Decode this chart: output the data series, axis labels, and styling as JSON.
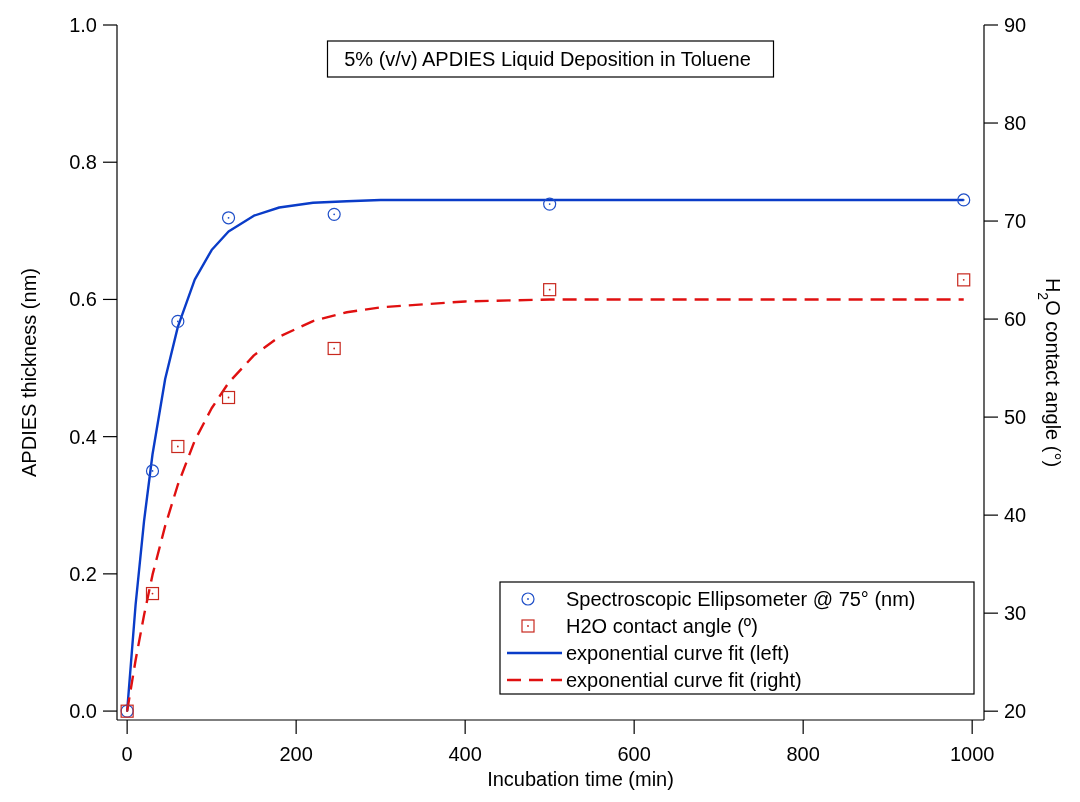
{
  "chart_data": {
    "type": "line",
    "title": "5% (v/v) APDIES Liquid Deposition in Toluene",
    "xlabel": "Incubation time (min)",
    "ylabel": "APDIES thickness (nm)",
    "y2label": "H$_{2}$O contact angle (°)",
    "xlim": [
      -12,
      1014
    ],
    "xticks": [
      0,
      200,
      400,
      600,
      800,
      1000
    ],
    "ylim": [
      -0.013,
      1.0
    ],
    "yticks": [
      {
        "value": 0,
        "label": "0.0"
      },
      {
        "value": 0.2,
        "label": "0.2"
      },
      {
        "value": 0.4,
        "label": "0.4"
      },
      {
        "value": 0.6,
        "label": "0.6"
      },
      {
        "value": 0.8,
        "label": "0.8"
      },
      {
        "value": 1,
        "label": "1.0"
      }
    ],
    "y2lim": [
      19.1,
      90
    ],
    "y2ticks": [
      20,
      30,
      40,
      50,
      60,
      70,
      80,
      90
    ],
    "grid": false,
    "legend": "bottom right",
    "series": [
      {
        "name": "Spectroscopic Ellipsometer @ 75° (nm)",
        "type": "scatter",
        "marker": "circle",
        "color": "#1f4fc8",
        "x": [
          0,
          30,
          60,
          120,
          245,
          500,
          990
        ],
        "values": [
          0,
          0.35,
          0.568,
          0.719,
          0.724,
          0.739,
          0.745
        ]
      },
      {
        "name": "H2O contact angle (º)",
        "type": "scatter",
        "marker": "square",
        "axis": "y2",
        "color": "#c8281e",
        "x": [
          0,
          30,
          60,
          120,
          245,
          500,
          990
        ],
        "values": [
          20,
          32,
          47,
          52,
          57,
          63,
          64
        ]
      },
      {
        "name": "exponential curve fit (left)",
        "line_style": "solid",
        "color": "#0a3cc8",
        "x": [
          0,
          10,
          20,
          30,
          45,
          60,
          80,
          100,
          120,
          150,
          180,
          220,
          260,
          300,
          400,
          500,
          700,
          990
        ],
        "values": [
          0,
          0.155,
          0.277,
          0.374,
          0.484,
          0.56,
          0.629,
          0.672,
          0.699,
          0.722,
          0.734,
          0.741,
          0.743,
          0.745,
          0.745,
          0.745,
          0.745,
          0.745
        ]
      },
      {
        "name": "exponential curve fit (right)",
        "line_style": "dashed",
        "axis": "y2",
        "color": "#e01010",
        "x": [
          0,
          10,
          20,
          30,
          45,
          60,
          80,
          100,
          120,
          150,
          180,
          220,
          260,
          300,
          400,
          500,
          700,
          990
        ],
        "values": [
          20,
          25.2,
          29.8,
          33.9,
          38.9,
          43.1,
          47.6,
          50.9,
          53.5,
          56.3,
          58.2,
          59.8,
          60.7,
          61.2,
          61.8,
          62,
          62,
          62
        ]
      }
    ]
  }
}
